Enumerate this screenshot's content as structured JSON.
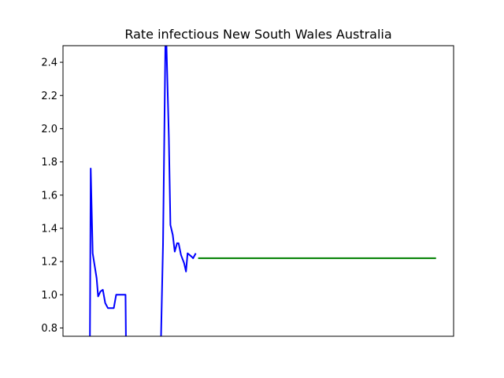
{
  "chart_data": {
    "type": "line",
    "title": "Rate infectious New South Wales Australia",
    "xlabel": "",
    "ylabel": "",
    "xlim": [
      0,
      100
    ],
    "ylim": [
      0.75,
      2.5
    ],
    "yticks": [
      0.8,
      1.0,
      1.2,
      1.4,
      1.6,
      1.8,
      2.0,
      2.2,
      2.4
    ],
    "ytick_labels": [
      "0.8",
      "1.0",
      "1.2",
      "1.4",
      "1.6",
      "1.8",
      "2.0",
      "2.2",
      "2.4"
    ],
    "grid": false,
    "series": [
      {
        "color": "#0000ff",
        "segments": [
          [
            [
              6.9,
              0.75
            ],
            [
              7.1,
              1.76
            ],
            [
              7.6,
              1.25
            ],
            [
              8.6,
              1.1
            ],
            [
              9.0,
              0.99
            ],
            [
              9.6,
              1.02
            ],
            [
              10.2,
              1.03
            ],
            [
              10.8,
              0.95
            ],
            [
              11.5,
              0.92
            ],
            [
              13.0,
              0.92
            ],
            [
              13.6,
              1.0
            ],
            [
              15.7,
              1.0
            ],
            [
              16.0,
              1.0
            ],
            [
              16.1,
              0.75
            ]
          ],
          [
            [
              25.1,
              0.75
            ],
            [
              25.6,
              1.3
            ],
            [
              26.2,
              2.5
            ],
            [
              26.5,
              2.5
            ],
            [
              27.1,
              1.95
            ],
            [
              27.5,
              1.42
            ],
            [
              28.1,
              1.36
            ],
            [
              28.6,
              1.26
            ],
            [
              29.2,
              1.31
            ],
            [
              29.6,
              1.31
            ],
            [
              30.2,
              1.24
            ],
            [
              31.0,
              1.19
            ],
            [
              31.5,
              1.14
            ],
            [
              31.9,
              1.25
            ],
            [
              32.9,
              1.23
            ],
            [
              33.3,
              1.22
            ],
            [
              34.0,
              1.25
            ]
          ]
        ]
      },
      {
        "color": "#008000",
        "segments": [
          [
            [
              34.6,
              1.22
            ],
            [
              95.5,
              1.22
            ]
          ]
        ]
      }
    ]
  }
}
